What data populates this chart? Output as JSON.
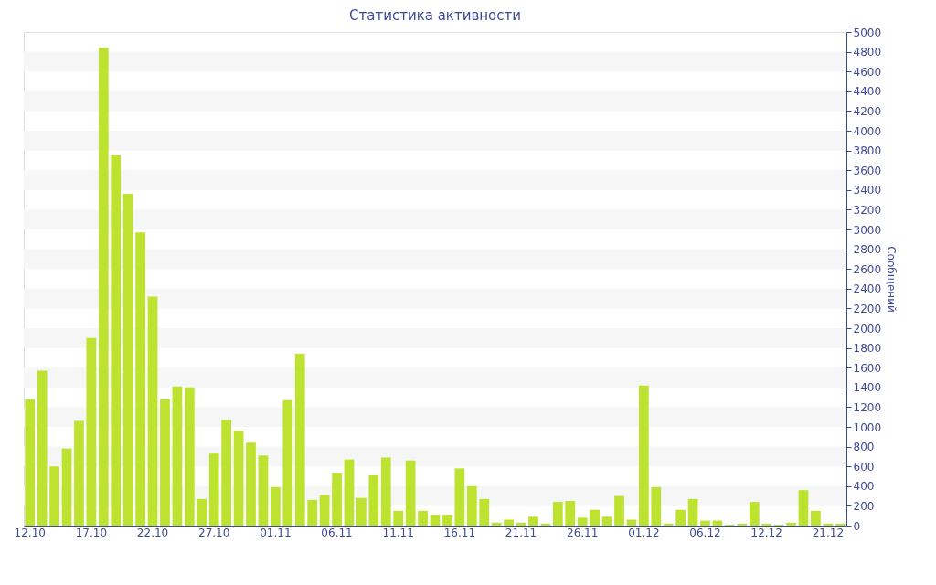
{
  "chart_data": {
    "type": "bar",
    "title": "Статистика активности",
    "ylabel": "Сообщений",
    "categories": [
      "12.10",
      null,
      null,
      null,
      null,
      "17.10",
      null,
      null,
      null,
      null,
      "22.10",
      null,
      null,
      null,
      null,
      "27.10",
      null,
      null,
      null,
      null,
      "01.11",
      null,
      null,
      null,
      null,
      "06.11",
      null,
      null,
      null,
      null,
      "11.11",
      null,
      null,
      null,
      null,
      "16.11",
      null,
      null,
      null,
      null,
      "21.11",
      null,
      null,
      null,
      null,
      "26.11",
      null,
      null,
      null,
      null,
      "01.12",
      null,
      null,
      null,
      null,
      "06.12",
      null,
      null,
      null,
      null,
      "12.12",
      null,
      null,
      null,
      null,
      "21.12",
      null
    ],
    "values": [
      1280,
      1570,
      600,
      780,
      1060,
      1900,
      4840,
      3750,
      3360,
      2970,
      2320,
      1280,
      1410,
      1400,
      270,
      730,
      1070,
      960,
      840,
      710,
      390,
      1270,
      1740,
      260,
      310,
      530,
      670,
      280,
      510,
      690,
      150,
      660,
      150,
      110,
      110,
      580,
      400,
      270,
      30,
      60,
      30,
      90,
      20,
      240,
      250,
      80,
      160,
      90,
      300,
      60,
      1420,
      390,
      20,
      160,
      270,
      50,
      50,
      10,
      20,
      240,
      20,
      10,
      30,
      360,
      150,
      20,
      20
    ],
    "color": "#bde22f",
    "ylim": [
      0,
      5000
    ],
    "yticks": [
      0,
      200,
      400,
      600,
      800,
      1000,
      1200,
      1400,
      1600,
      1800,
      2000,
      2200,
      2400,
      2600,
      2800,
      3000,
      3200,
      3400,
      3600,
      3800,
      4000,
      4200,
      4400,
      4600,
      4800,
      5000
    ],
    "bands": [
      {
        "axis": "y",
        "from": 200,
        "to": 400,
        "color": "#f6f6f6"
      },
      {
        "axis": "y",
        "from": 600,
        "to": 800,
        "color": "#f6f6f6"
      },
      {
        "axis": "y",
        "from": 1000,
        "to": 1200,
        "color": "#f6f6f6"
      },
      {
        "axis": "y",
        "from": 1400,
        "to": 1600,
        "color": "#f6f6f6"
      },
      {
        "axis": "y",
        "from": 1800,
        "to": 2000,
        "color": "#f6f6f6"
      },
      {
        "axis": "y",
        "from": 2200,
        "to": 2400,
        "color": "#f6f6f6"
      },
      {
        "axis": "y",
        "from": 2600,
        "to": 2800,
        "color": "#f6f6f6"
      },
      {
        "axis": "y",
        "from": 3000,
        "to": 3200,
        "color": "#f6f6f6"
      },
      {
        "axis": "y",
        "from": 3400,
        "to": 3600,
        "color": "#f6f6f6"
      },
      {
        "axis": "y",
        "from": 3800,
        "to": 4000,
        "color": "#f6f6f6"
      },
      {
        "axis": "y",
        "from": 4200,
        "to": 4400,
        "color": "#f6f6f6"
      },
      {
        "axis": "y",
        "from": 4600,
        "to": 4800,
        "color": "#f6f6f6"
      }
    ]
  }
}
